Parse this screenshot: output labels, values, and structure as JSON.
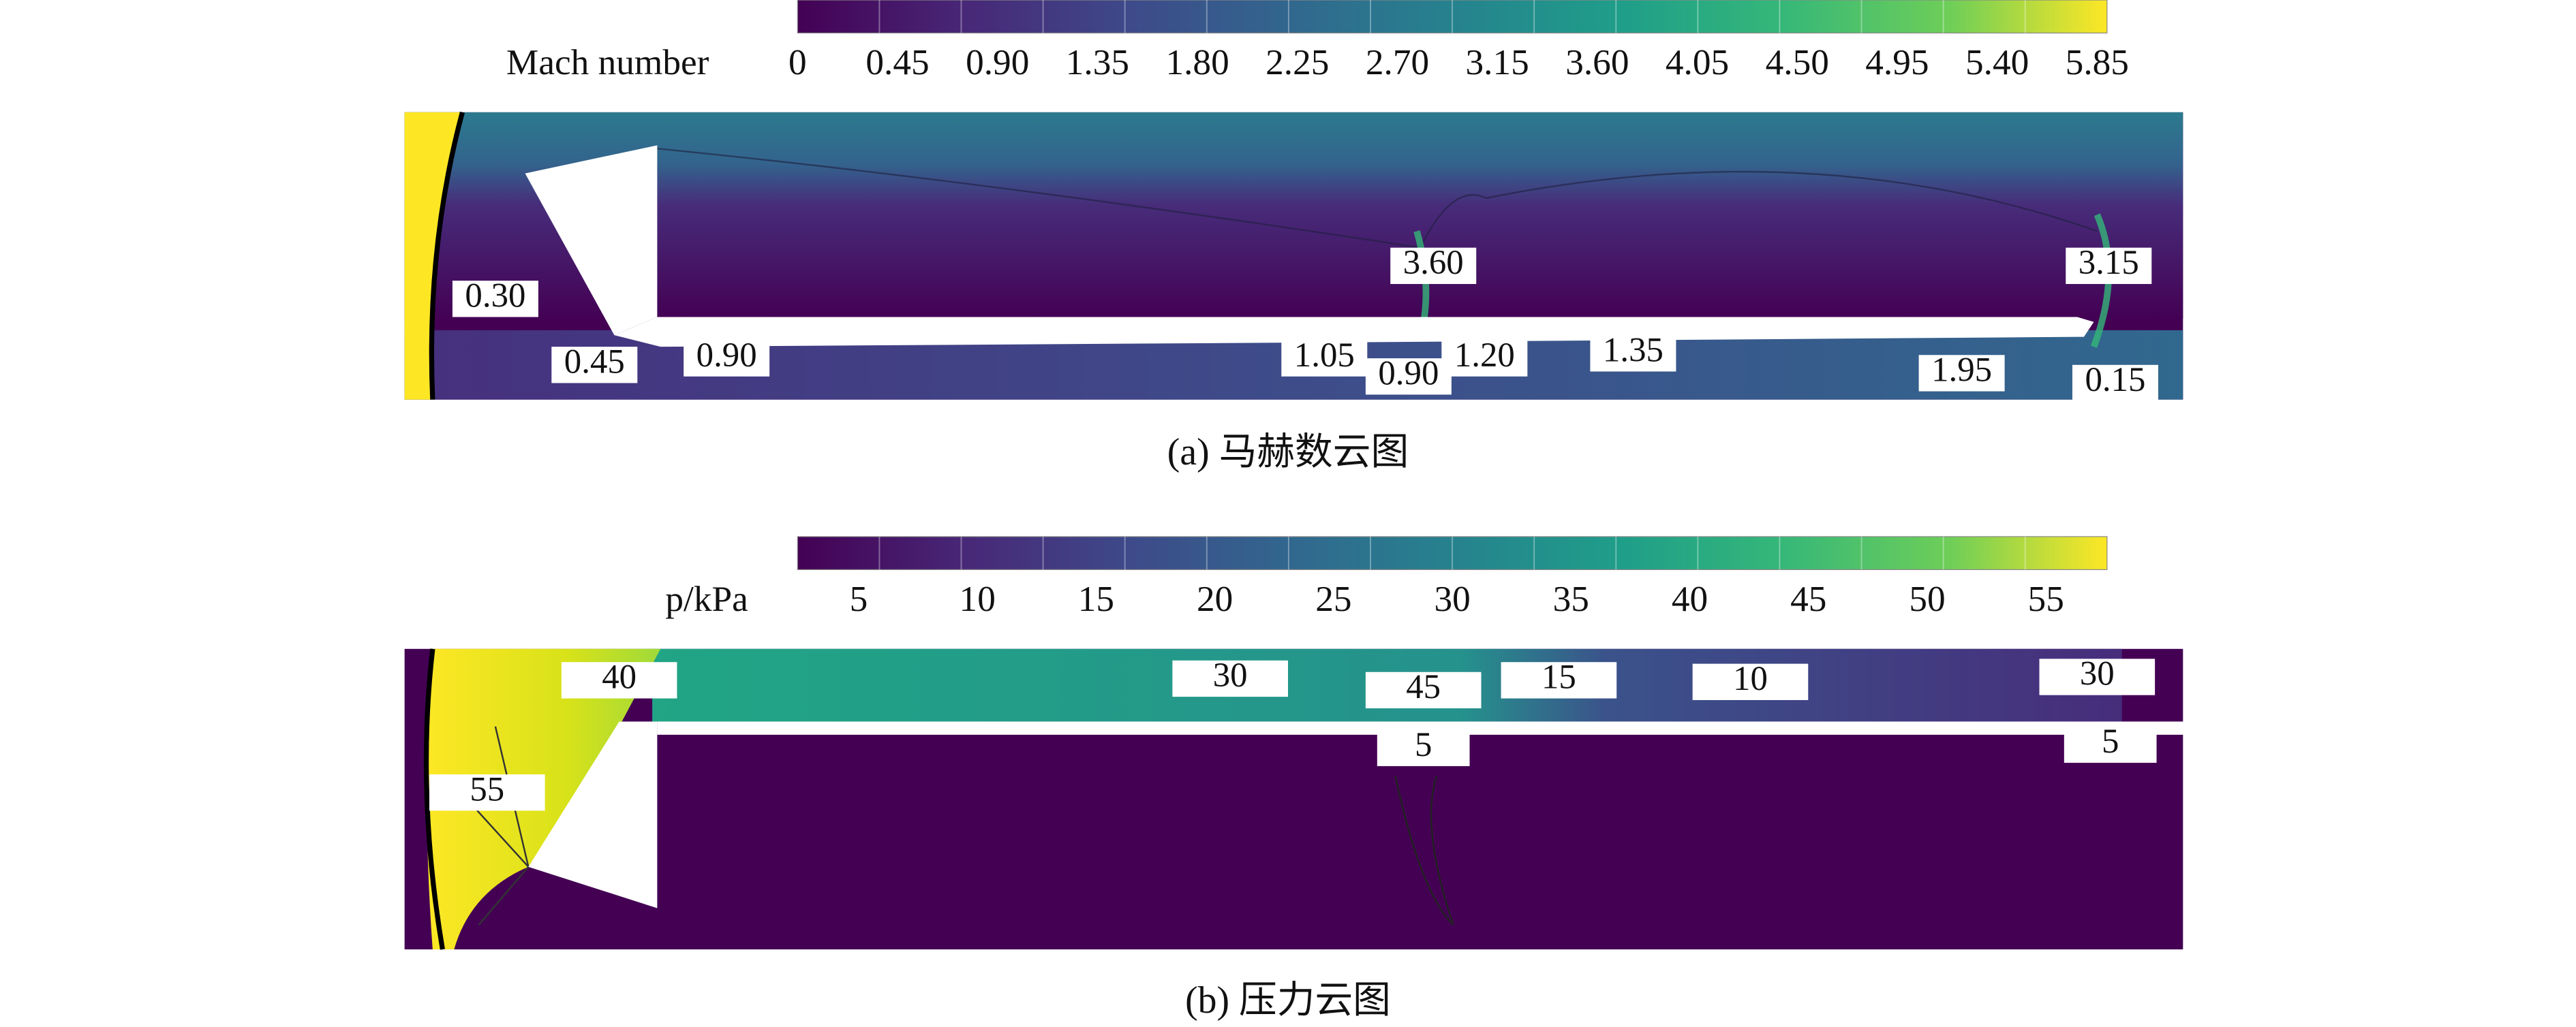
{
  "panels": [
    {
      "colorbar": {
        "title": "Mach number",
        "ticks": [
          "0",
          "0.45",
          "0.90",
          "1.35",
          "1.80",
          "2.25",
          "2.70",
          "3.15",
          "3.60",
          "4.05",
          "4.50",
          "4.95",
          "5.40",
          "5.85"
        ]
      },
      "contour_labels": [
        "0.30",
        "0.45",
        "0.90",
        "3.60",
        "3.15",
        "1.05",
        "0.90",
        "1.20",
        "1.35",
        "1.95",
        "0.15"
      ],
      "caption": "(a) 马赫数云图"
    },
    {
      "colorbar": {
        "title": "p/kPa",
        "ticks": [
          "5",
          "10",
          "15",
          "20",
          "25",
          "30",
          "35",
          "40",
          "45",
          "50",
          "55"
        ]
      },
      "contour_labels": [
        "40",
        "30",
        "45",
        "15",
        "10",
        "30",
        "55",
        "5",
        "5"
      ],
      "caption": "(b) 压力云图"
    }
  ]
}
